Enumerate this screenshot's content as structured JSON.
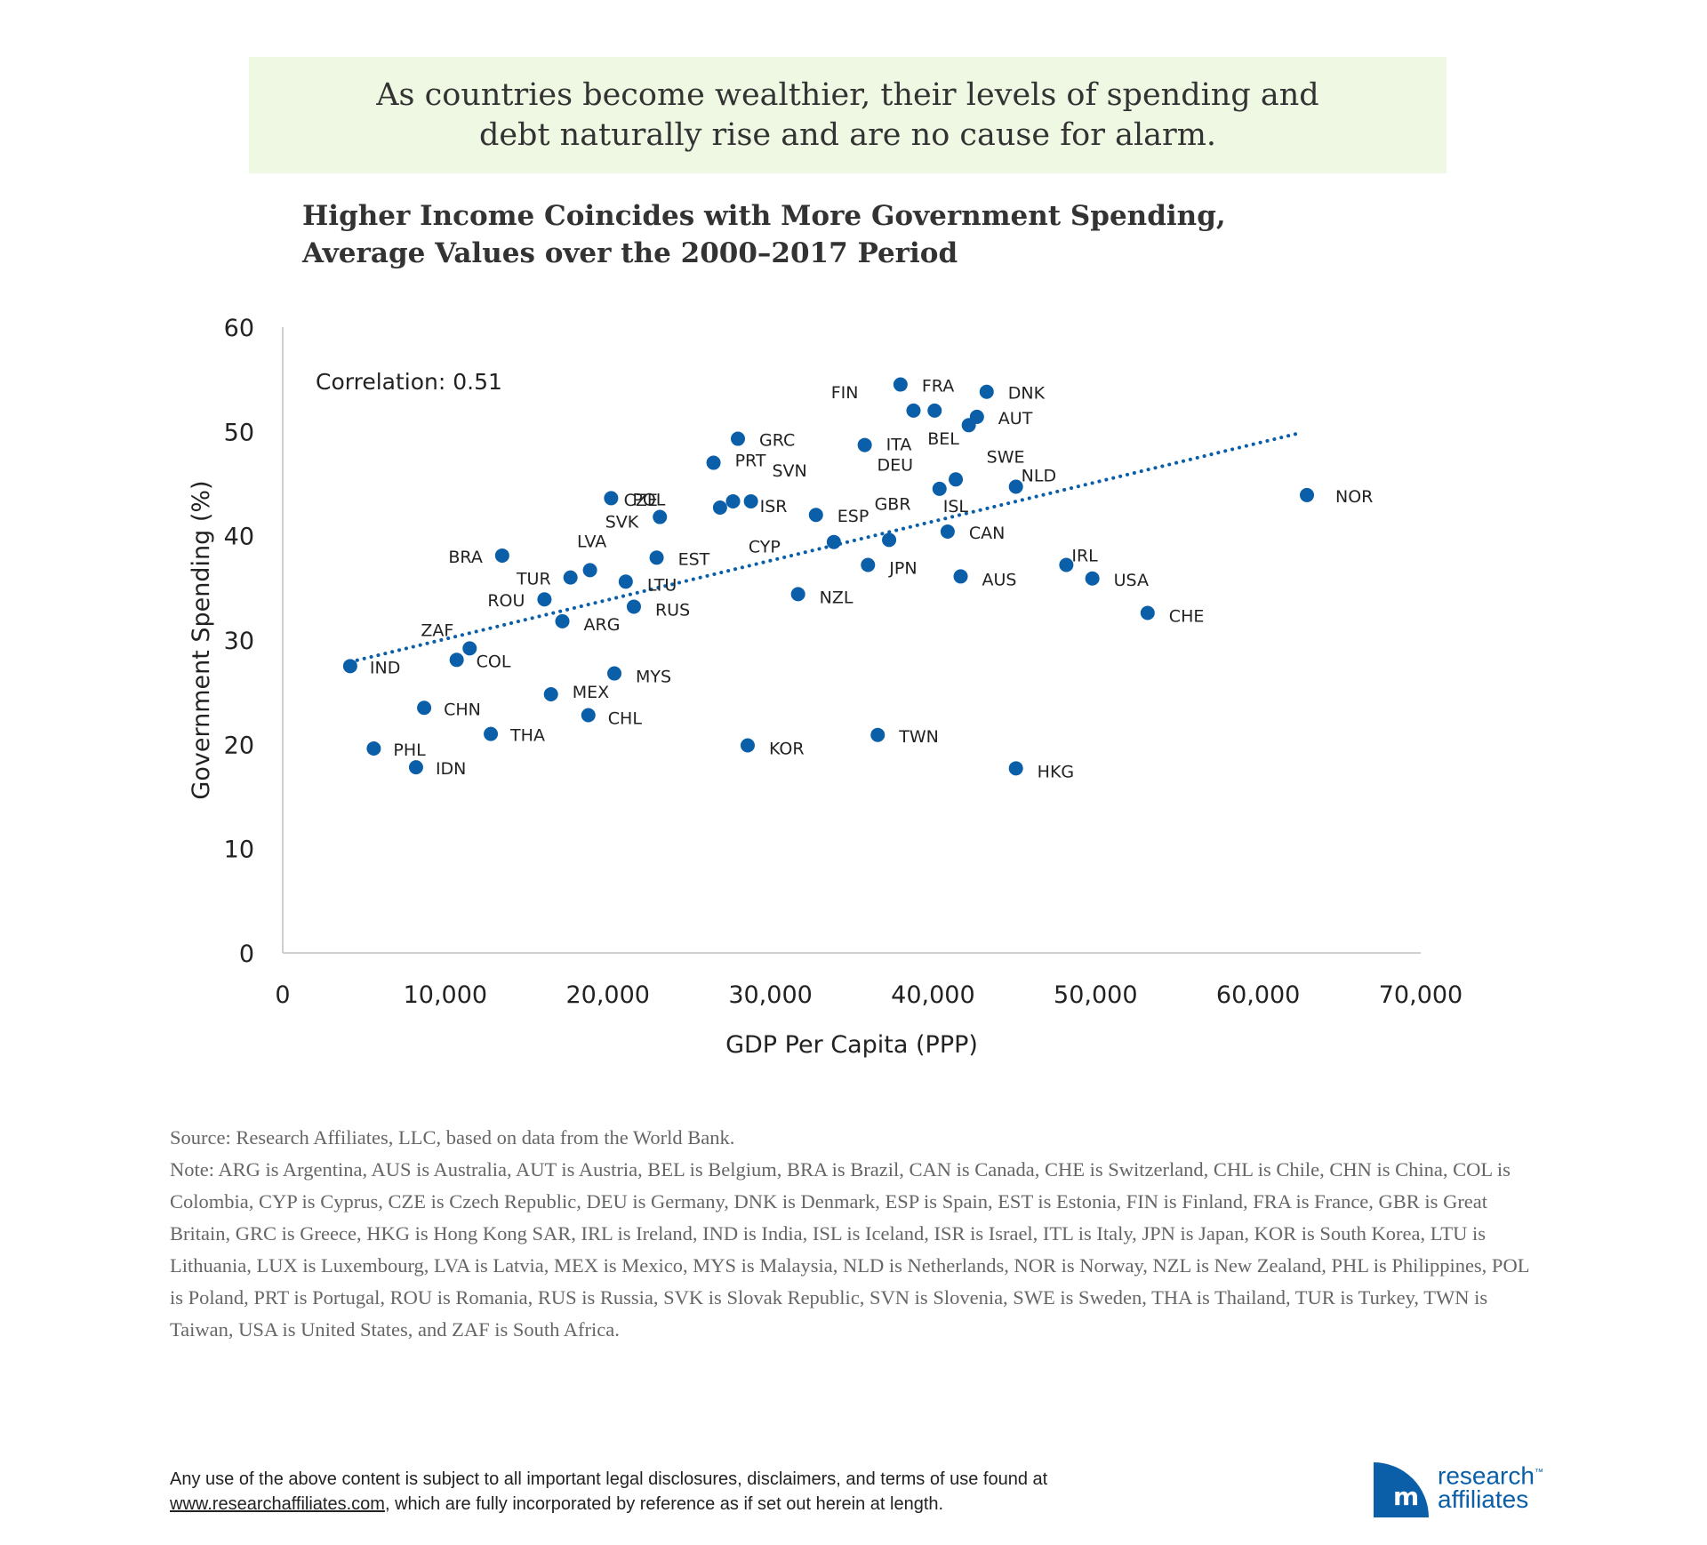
{
  "callout": "As countries become wealthier, their levels of spending and debt naturally rise and are no cause for alarm.",
  "title_line1": "Higher Income Coincides with More Government Spending,",
  "title_line2": "Average Values over the 2000–2017 Period",
  "chart_data": {
    "type": "scatter",
    "title": "Higher Income Coincides with More Government Spending, Average Values over the 2000–2017 Period",
    "xlabel": "GDP Per Capita (PPP)",
    "ylabel": "Government Spending (%)",
    "xlim": [
      0,
      70000
    ],
    "ylim": [
      0,
      60
    ],
    "xticks": [
      "0",
      "10,000",
      "20,000",
      "30,000",
      "40,000",
      "50,000",
      "60,000",
      "70,000"
    ],
    "yticks": [
      "0",
      "10",
      "20",
      "30",
      "40",
      "50",
      "60"
    ],
    "annotation": "Correlation: 0.51",
    "point_color": "#0a5fa8",
    "trendline": {
      "style": "dotted",
      "x": [
        4150,
        62700
      ],
      "y": [
        27.9,
        49.9
      ]
    },
    "points": [
      {
        "label": "IND",
        "x": 4150,
        "y": 27.5
      },
      {
        "label": "PHL",
        "x": 5600,
        "y": 19.6
      },
      {
        "label": "IDN",
        "x": 8200,
        "y": 17.8
      },
      {
        "label": "CHN",
        "x": 8700,
        "y": 23.5
      },
      {
        "label": "COL",
        "x": 10700,
        "y": 28.1
      },
      {
        "label": "ZAF",
        "x": 11500,
        "y": 29.2
      },
      {
        "label": "THA",
        "x": 12800,
        "y": 21.0
      },
      {
        "label": "BRA",
        "x": 13500,
        "y": 38.1
      },
      {
        "label": "ROU",
        "x": 16100,
        "y": 33.9
      },
      {
        "label": "MEX",
        "x": 16500,
        "y": 24.8
      },
      {
        "label": "ARG",
        "x": 17200,
        "y": 31.8
      },
      {
        "label": "TUR",
        "x": 17700,
        "y": 36.0
      },
      {
        "label": "LVA",
        "x": 18900,
        "y": 36.7
      },
      {
        "label": "CHL",
        "x": 18800,
        "y": 22.8
      },
      {
        "label": "POL",
        "x": 20200,
        "y": 43.6
      },
      {
        "label": "MYS",
        "x": 20400,
        "y": 26.8
      },
      {
        "label": "LTU",
        "x": 21100,
        "y": 35.6
      },
      {
        "label": "RUS",
        "x": 21600,
        "y": 33.2
      },
      {
        "label": "EST",
        "x": 23000,
        "y": 37.9
      },
      {
        "label": "SVK",
        "x": 23200,
        "y": 41.8
      },
      {
        "label": "PRT",
        "x": 26500,
        "y": 47.0
      },
      {
        "label": "CZE",
        "x": 26900,
        "y": 42.7
      },
      {
        "label": "SVN",
        "x": 27700,
        "y": 43.3
      },
      {
        "label": "GRC",
        "x": 28000,
        "y": 49.3
      },
      {
        "label": "KOR",
        "x": 28600,
        "y": 19.9
      },
      {
        "label": "ISR",
        "x": 28800,
        "y": 43.3
      },
      {
        "label": "NZL",
        "x": 31700,
        "y": 34.4
      },
      {
        "label": "ESP",
        "x": 32800,
        "y": 42.0
      },
      {
        "label": "CYP",
        "x": 33900,
        "y": 39.4
      },
      {
        "label": "ITA",
        "x": 35800,
        "y": 48.7
      },
      {
        "label": "JPN",
        "x": 36000,
        "y": 37.2
      },
      {
        "label": "TWN",
        "x": 36600,
        "y": 20.9
      },
      {
        "label": "GBR",
        "x": 37300,
        "y": 39.6
      },
      {
        "label": "FRA",
        "x": 38000,
        "y": 54.5
      },
      {
        "label": "FIN",
        "x": 38800,
        "y": 52.0
      },
      {
        "label": "BEL",
        "x": 40100,
        "y": 52.0
      },
      {
        "label": "ISL",
        "x": 40400,
        "y": 44.5
      },
      {
        "label": "CAN",
        "x": 40900,
        "y": 40.4
      },
      {
        "label": "DEU",
        "x": 41400,
        "y": 45.4
      },
      {
        "label": "AUS",
        "x": 41700,
        "y": 36.1
      },
      {
        "label": "SWE",
        "x": 42200,
        "y": 50.6
      },
      {
        "label": "AUT",
        "x": 42700,
        "y": 51.4
      },
      {
        "label": "DNK",
        "x": 43300,
        "y": 53.8
      },
      {
        "label": "NLD",
        "x": 45100,
        "y": 44.7
      },
      {
        "label": "HKG",
        "x": 45100,
        "y": 17.7
      },
      {
        "label": "IRL",
        "x": 48200,
        "y": 37.2
      },
      {
        "label": "USA",
        "x": 49800,
        "y": 35.9
      },
      {
        "label": "CHE",
        "x": 53200,
        "y": 32.6
      },
      {
        "label": "NOR",
        "x": 63000,
        "y": 43.9
      }
    ]
  },
  "source": "Source: Research Affiliates, LLC, based on data from the World Bank.",
  "note": "Note: ARG is Argentina, AUS is Australia, AUT is Austria, BEL is Belgium, BRA is Brazil, CAN is Canada, CHE is Switzerland, CHL is Chile, CHN is China, COL is Colombia, CYP is Cyprus, CZE is Czech Republic, DEU is Germany, DNK is Denmark, ESP is Spain, EST is Estonia, FIN is Finland, FRA is France, GBR is Great Britain, GRC is Greece, HKG is Hong Kong SAR, IRL is Ireland, IND is India, ISL is Iceland, ISR is Israel, ITL is Italy, JPN is Japan, KOR is South Korea, LTU is Lithuania, LUX is Luxembourg, LVA is Latvia, MEX is Mexico, MYS is Malaysia, NLD is Netherlands, NOR is Norway, NZL is New Zealand, PHL is Philippines, POL is Poland, PRT is Portugal, ROU is Romania, RUS is Russia, SVK is Slovak Republic, SVN is Slovenia, SWE is Sweden, THA is Thailand, TUR is Turkey, TWN is Taiwan, USA is United States, and ZAF is South Africa.",
  "footer_line1": "Any use of the above content is subject to all important legal disclosures, disclaimers, and terms of use found at",
  "footer_link": "www.researchaffiliates.com",
  "footer_line2_rest": ", which are fully incorporated by reference as if set out herein at length.",
  "logo_line1": "research",
  "logo_line2": "affiliates",
  "logo_tm": "™"
}
